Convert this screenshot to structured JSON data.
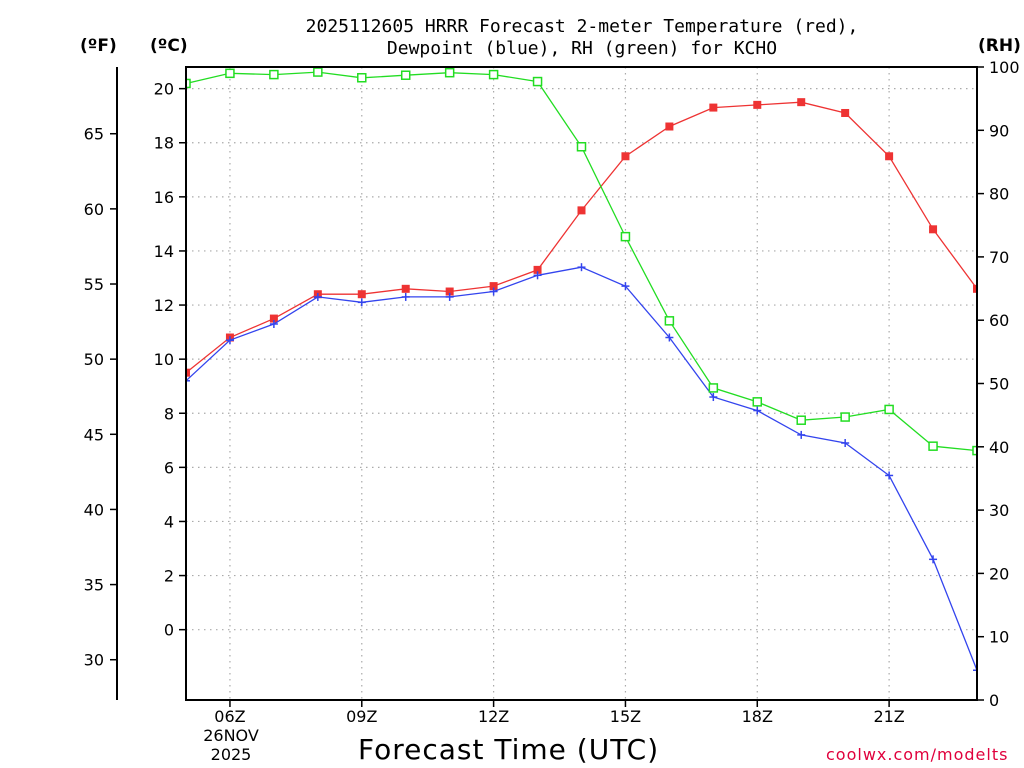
{
  "chart_data": {
    "type": "line",
    "title_line1": "2025112605 HRRR Forecast 2-meter Temperature (red),",
    "title_line2": "Dewpoint (blue), RH (green) for KCHO",
    "xlabel": "Forecast Time (UTC)",
    "unit_left_f": "(ºF)",
    "unit_left_c": "(ºC)",
    "unit_right": "(RH)",
    "date_label": [
      "26NOV",
      "2025"
    ],
    "x_hours": [
      5,
      6,
      7,
      8,
      9,
      10,
      11,
      12,
      13,
      14,
      15,
      16,
      17,
      18,
      19,
      20,
      21,
      22,
      23
    ],
    "x_range": [
      5,
      23
    ],
    "x_ticks": [
      {
        "hour": 6,
        "label": "06Z"
      },
      {
        "hour": 9,
        "label": "09Z"
      },
      {
        "hour": 12,
        "label": "12Z"
      },
      {
        "hour": 15,
        "label": "15Z"
      },
      {
        "hour": 18,
        "label": "18Z"
      },
      {
        "hour": 21,
        "label": "21Z"
      }
    ],
    "celsius_range": [
      -2.6,
      20.8
    ],
    "celsius_ticks": [
      0,
      2,
      4,
      6,
      8,
      10,
      12,
      14,
      16,
      18,
      20
    ],
    "fahrenheit_ticks": [
      30,
      35,
      40,
      45,
      50,
      55,
      60,
      65
    ],
    "rh_range": [
      0,
      100
    ],
    "rh_ticks": [
      0,
      10,
      20,
      30,
      40,
      50,
      60,
      70,
      80,
      90,
      100
    ],
    "grid": true,
    "series": [
      {
        "name": "Temperature",
        "unit": "C",
        "color": "#ee3333",
        "marker": "filled-square",
        "values": [
          9.5,
          10.8,
          11.5,
          12.4,
          12.4,
          12.6,
          12.5,
          12.7,
          13.3,
          15.5,
          17.5,
          18.6,
          19.3,
          19.4,
          19.5,
          19.1,
          17.5,
          14.8,
          12.6
        ]
      },
      {
        "name": "Dewpoint",
        "unit": "C",
        "color": "#3344ee",
        "marker": "plus",
        "values": [
          9.2,
          10.7,
          11.3,
          12.3,
          12.1,
          12.3,
          12.3,
          12.5,
          13.1,
          13.4,
          12.7,
          10.8,
          8.6,
          8.1,
          7.2,
          6.9,
          5.7,
          2.6,
          -1.5
        ]
      },
      {
        "name": "RH",
        "unit": "%",
        "color": "#22dd22",
        "marker": "open-square",
        "values": [
          97.4,
          99.0,
          98.8,
          99.2,
          98.3,
          98.7,
          99.1,
          98.8,
          97.7,
          87.4,
          73.2,
          59.9,
          49.3,
          47.1,
          44.2,
          44.7,
          45.9,
          40.1,
          39.4
        ]
      }
    ]
  },
  "watermark": "coolwx.com/modelts"
}
